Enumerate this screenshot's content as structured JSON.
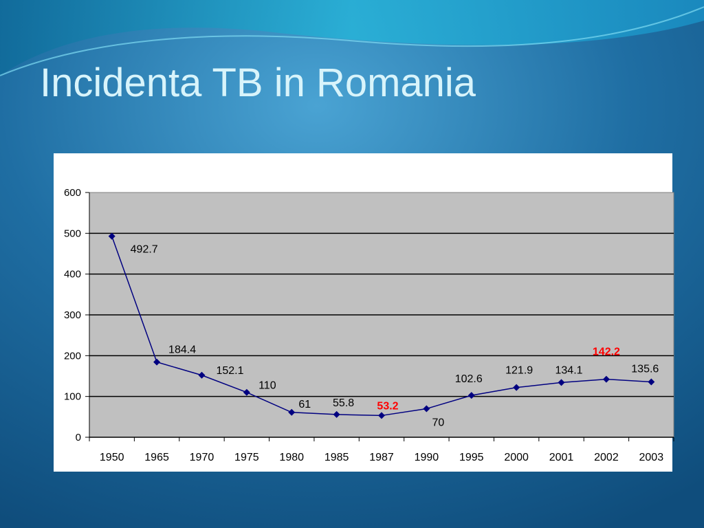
{
  "chart_data": {
    "type": "line",
    "title": "Incidenta TB in Romania",
    "categories": [
      "1950",
      "1965",
      "1970",
      "1975",
      "1980",
      "1985",
      "1987",
      "1990",
      "1995",
      "2000",
      "2001",
      "2002",
      "2003"
    ],
    "series": [
      {
        "name": "Incidenta TB",
        "color": "#000080",
        "values": [
          492.7,
          184.4,
          152.1,
          110,
          61,
          55.8,
          53.2,
          70,
          102.6,
          121.9,
          134.1,
          142.2,
          135.6
        ]
      }
    ],
    "value_label_colors": [
      "#000000",
      "#000000",
      "#000000",
      "#000000",
      "#000000",
      "#000000",
      "#ff0000",
      "#000000",
      "#000000",
      "#000000",
      "#000000",
      "#ff0000",
      "#000000"
    ],
    "ylim": [
      0,
      600
    ],
    "yticks": [
      0,
      100,
      200,
      300,
      400,
      500,
      600
    ],
    "grid": true
  }
}
